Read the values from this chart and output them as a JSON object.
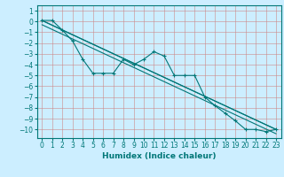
{
  "xlabel": "Humidex (Indice chaleur)",
  "background_color": "#cceeff",
  "grid_color": "#cc8888",
  "line_color": "#007777",
  "xlim": [
    -0.5,
    23.5
  ],
  "ylim": [
    -10.8,
    1.5
  ],
  "yticks": [
    1,
    0,
    -1,
    -2,
    -3,
    -4,
    -5,
    -6,
    -7,
    -8,
    -9,
    -10
  ],
  "xticks": [
    0,
    1,
    2,
    3,
    4,
    5,
    6,
    7,
    8,
    9,
    10,
    11,
    12,
    13,
    14,
    15,
    16,
    17,
    18,
    19,
    20,
    21,
    22,
    23
  ],
  "series1_x": [
    0,
    1,
    2,
    3,
    4,
    5,
    6,
    7,
    8,
    9,
    10,
    11,
    12,
    13,
    14,
    15,
    16,
    17,
    18,
    19,
    20,
    21,
    22,
    23
  ],
  "series1_y": [
    0.1,
    0.1,
    -0.8,
    -1.8,
    -3.5,
    -4.8,
    -4.8,
    -4.8,
    -3.5,
    -4.0,
    -3.5,
    -2.8,
    -3.2,
    -5.0,
    -5.0,
    -5.0,
    -7.0,
    -7.8,
    -8.5,
    -9.2,
    -10.0,
    -10.0,
    -10.2,
    -10.0
  ],
  "series2_x": [
    0,
    23
  ],
  "series2_y": [
    0.1,
    -10.0
  ],
  "series3_x": [
    0,
    23
  ],
  "series3_y": [
    -0.3,
    -10.4
  ],
  "series4_x": [
    0,
    2,
    23
  ],
  "series4_y": [
    0.1,
    -0.8,
    -10.0
  ]
}
